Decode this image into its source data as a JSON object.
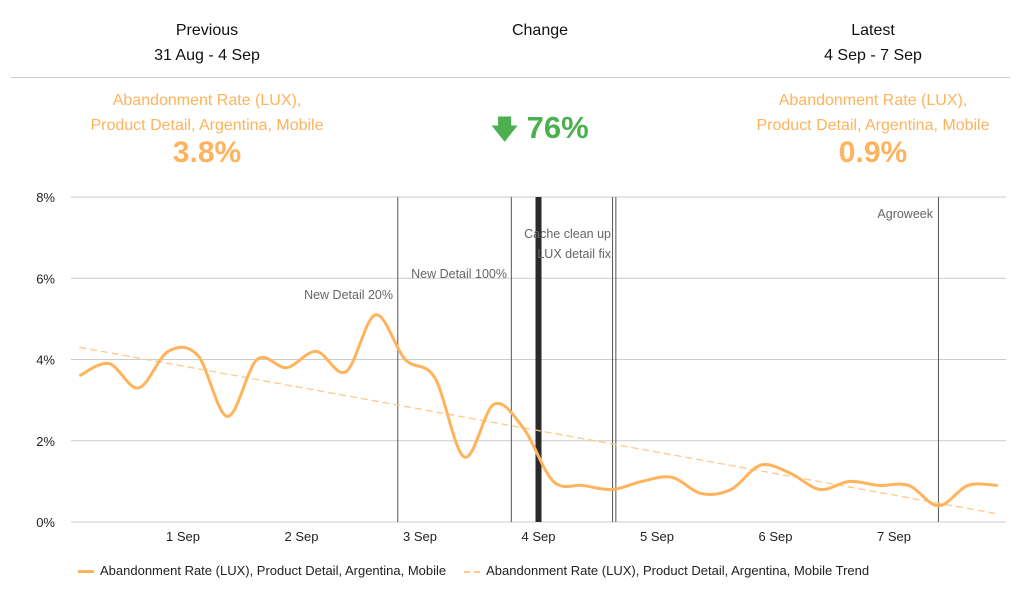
{
  "header": {
    "previous_label": "Previous",
    "previous_range": "31 Aug - 4 Sep",
    "change_label": "Change",
    "latest_label": "Latest",
    "latest_range": "4 Sep - 7 Sep"
  },
  "previous": {
    "metric_line1": "Abandonment Rate (LUX),",
    "metric_line2": "Product Detail, Argentina, Mobile",
    "value": "3.8%"
  },
  "latest": {
    "metric_line1": "Abandonment Rate (LUX),",
    "metric_line2": "Product Detail, Argentina, Mobile",
    "value": "0.9%"
  },
  "change": {
    "direction": "down",
    "icon": "arrow-down-icon",
    "value": "76%",
    "color": "#4caf50"
  },
  "colors": {
    "series": "#ffb35c",
    "trend": "#ffc98a",
    "annotation": "#555555"
  },
  "chart_data": {
    "type": "line",
    "ylim": [
      0,
      8
    ],
    "yticks": [
      "0%",
      "2%",
      "4%",
      "6%",
      "8%"
    ],
    "xticks": [
      "1 Sep",
      "2 Sep",
      "3 Sep",
      "4 Sep",
      "5 Sep",
      "6 Sep",
      "7 Sep"
    ],
    "grid": true,
    "legend_placement": "bottom",
    "x": [
      "31 Aug 03:00",
      "31 Aug 09:00",
      "31 Aug 15:00",
      "31 Aug 21:00",
      "1 Sep 03:00",
      "1 Sep 09:00",
      "1 Sep 15:00",
      "1 Sep 21:00",
      "2 Sep 03:00",
      "2 Sep 09:00",
      "2 Sep 15:00",
      "2 Sep 21:00",
      "3 Sep 03:00",
      "3 Sep 09:00",
      "3 Sep 15:00",
      "3 Sep 21:00",
      "4 Sep 03:00",
      "4 Sep 09:00",
      "4 Sep 15:00",
      "4 Sep 21:00",
      "5 Sep 03:00",
      "5 Sep 09:00",
      "5 Sep 15:00",
      "5 Sep 21:00",
      "6 Sep 03:00",
      "6 Sep 09:00",
      "6 Sep 15:00",
      "6 Sep 21:00",
      "7 Sep 03:00",
      "7 Sep 09:00",
      "7 Sep 15:00",
      "7 Sep 21:00"
    ],
    "series": [
      {
        "name": "Abandonment Rate (LUX), Product Detail, Argentina, Mobile",
        "style": "solid",
        "values": [
          3.6,
          3.9,
          3.3,
          4.2,
          4.1,
          2.6,
          4.0,
          3.8,
          4.2,
          3.7,
          5.1,
          4.0,
          3.55,
          1.6,
          2.9,
          2.3,
          1.0,
          0.9,
          0.8,
          1.0,
          1.1,
          0.7,
          0.8,
          1.4,
          1.2,
          0.8,
          1.0,
          0.9,
          0.9,
          0.4,
          0.9,
          0.9
        ]
      },
      {
        "name": "Abandonment Rate (LUX), Product Detail, Argentina, Mobile Trend",
        "style": "dashed",
        "values_endpoints": [
          4.3,
          0.2
        ]
      }
    ],
    "annotations": [
      {
        "time": "2 Sep 19:30",
        "label": [
          "New Detail 20%"
        ],
        "weight": "thin"
      },
      {
        "time": "3 Sep 18:30",
        "label": [
          "New Detail 100%"
        ],
        "weight": "thin"
      },
      {
        "time": "4 Sep 00:00",
        "label": [],
        "weight": "thick"
      },
      {
        "time": "4 Sep 15:00",
        "label": [
          "Cache clean up",
          "LUX detail fix"
        ],
        "weight": "thin"
      },
      {
        "time": "4 Sep 15:40",
        "label": [],
        "weight": "thin"
      },
      {
        "time": "7 Sep 09:00",
        "label": [
          "Agroweek"
        ],
        "weight": "thin"
      }
    ]
  }
}
